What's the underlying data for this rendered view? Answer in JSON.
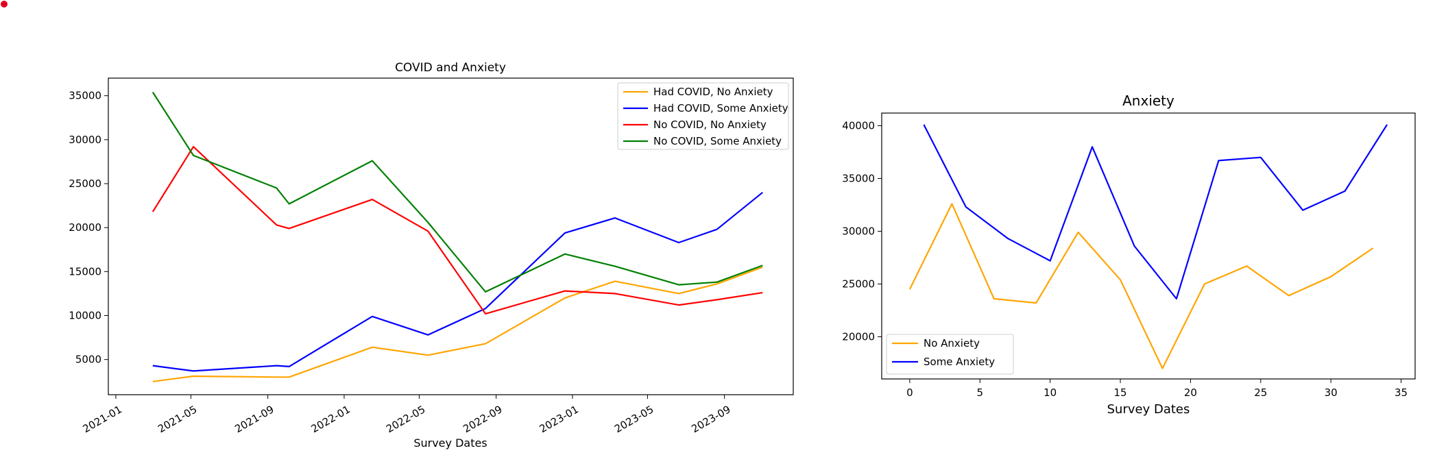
{
  "chart_data": [
    {
      "type": "line",
      "title": "COVID and Anxiety",
      "xlabel": "Survey Dates",
      "ylabel": "",
      "x_axis": "date",
      "xlim": [
        "2020-12-20",
        "2023-12-20"
      ],
      "ylim": [
        1000,
        37000
      ],
      "xticks": [
        "2021-01",
        "2021-05",
        "2021-09",
        "2022-01",
        "2022-05",
        "2022-09",
        "2023-01",
        "2023-05",
        "2023-09"
      ],
      "yticks": [
        5000,
        10000,
        15000,
        20000,
        25000,
        30000,
        35000
      ],
      "grid": false,
      "legend": "top-right",
      "series": [
        {
          "name": "Had COVID, No Anxiety",
          "color": "#FFA500",
          "points": [
            [
              "2021-03-01",
              2500
            ],
            [
              "2021-05-05",
              3100
            ],
            [
              "2021-09-15",
              3000
            ],
            [
              "2021-10-05",
              3000
            ],
            [
              "2022-02-15",
              6400
            ],
            [
              "2022-05-15",
              5500
            ],
            [
              "2022-08-15",
              6800
            ],
            [
              "2022-12-20",
              12000
            ],
            [
              "2023-03-10",
              13900
            ],
            [
              "2023-06-20",
              12500
            ],
            [
              "2023-08-20",
              13600
            ],
            [
              "2023-11-01",
              15500
            ]
          ]
        },
        {
          "name": "Had COVID, Some Anxiety",
          "color": "#0000FF",
          "points": [
            [
              "2021-03-01",
              4300
            ],
            [
              "2021-05-05",
              3700
            ],
            [
              "2021-09-15",
              4300
            ],
            [
              "2021-10-05",
              4200
            ],
            [
              "2022-02-15",
              9900
            ],
            [
              "2022-05-15",
              7800
            ],
            [
              "2022-08-15",
              10800
            ],
            [
              "2022-12-20",
              19400
            ],
            [
              "2023-03-10",
              21100
            ],
            [
              "2023-06-20",
              18300
            ],
            [
              "2023-08-20",
              19800
            ],
            [
              "2023-11-01",
              24000
            ]
          ]
        },
        {
          "name": "No COVID, No Anxiety",
          "color": "#FF0000",
          "points": [
            [
              "2021-03-01",
              21800
            ],
            [
              "2021-05-05",
              29200
            ],
            [
              "2021-09-15",
              20300
            ],
            [
              "2021-10-05",
              19900
            ],
            [
              "2022-02-15",
              23200
            ],
            [
              "2022-05-15",
              19600
            ],
            [
              "2022-08-15",
              10200
            ],
            [
              "2022-12-20",
              12800
            ],
            [
              "2023-03-10",
              12500
            ],
            [
              "2023-06-20",
              11200
            ],
            [
              "2023-08-20",
              11800
            ],
            [
              "2023-11-01",
              12600
            ]
          ]
        },
        {
          "name": "No COVID, Some Anxiety",
          "color": "#008000",
          "points": [
            [
              "2021-03-01",
              35400
            ],
            [
              "2021-05-05",
              28200
            ],
            [
              "2021-09-15",
              24500
            ],
            [
              "2021-10-05",
              22700
            ],
            [
              "2022-02-15",
              27600
            ],
            [
              "2022-05-15",
              20600
            ],
            [
              "2022-08-15",
              12700
            ],
            [
              "2022-12-20",
              17000
            ],
            [
              "2023-03-10",
              15600
            ],
            [
              "2023-06-20",
              13500
            ],
            [
              "2023-08-20",
              13800
            ],
            [
              "2023-11-01",
              15700
            ]
          ]
        }
      ]
    },
    {
      "type": "line",
      "title": "Anxiety",
      "xlabel": "Survey Dates",
      "ylabel": "",
      "x_axis": "number",
      "xlim": [
        -2,
        36
      ],
      "ylim": [
        16000,
        41200
      ],
      "xticks": [
        0,
        5,
        10,
        15,
        20,
        25,
        30,
        35
      ],
      "yticks": [
        20000,
        25000,
        30000,
        35000,
        40000
      ],
      "grid": false,
      "legend": "bottom-left",
      "series": [
        {
          "name": "No Anxiety",
          "color": "#FFA500",
          "points": [
            [
              0,
              24500
            ],
            [
              3,
              32600
            ],
            [
              6,
              23600
            ],
            [
              9,
              23200
            ],
            [
              12,
              29900
            ],
            [
              15,
              25400
            ],
            [
              18,
              17000
            ],
            [
              21,
              25000
            ],
            [
              24,
              26700
            ],
            [
              27,
              23900
            ],
            [
              30,
              25700
            ],
            [
              33,
              28400
            ]
          ]
        },
        {
          "name": "Some Anxiety",
          "color": "#0000FF",
          "points": [
            [
              1,
              40100
            ],
            [
              4,
              32300
            ],
            [
              7,
              29300
            ],
            [
              10,
              27200
            ],
            [
              13,
              38000
            ],
            [
              16,
              28600
            ],
            [
              19,
              23600
            ],
            [
              22,
              36700
            ],
            [
              25,
              37000
            ],
            [
              28,
              32000
            ],
            [
              31,
              33800
            ],
            [
              34,
              40100
            ]
          ]
        }
      ]
    }
  ],
  "marker_color": "#E3001B"
}
